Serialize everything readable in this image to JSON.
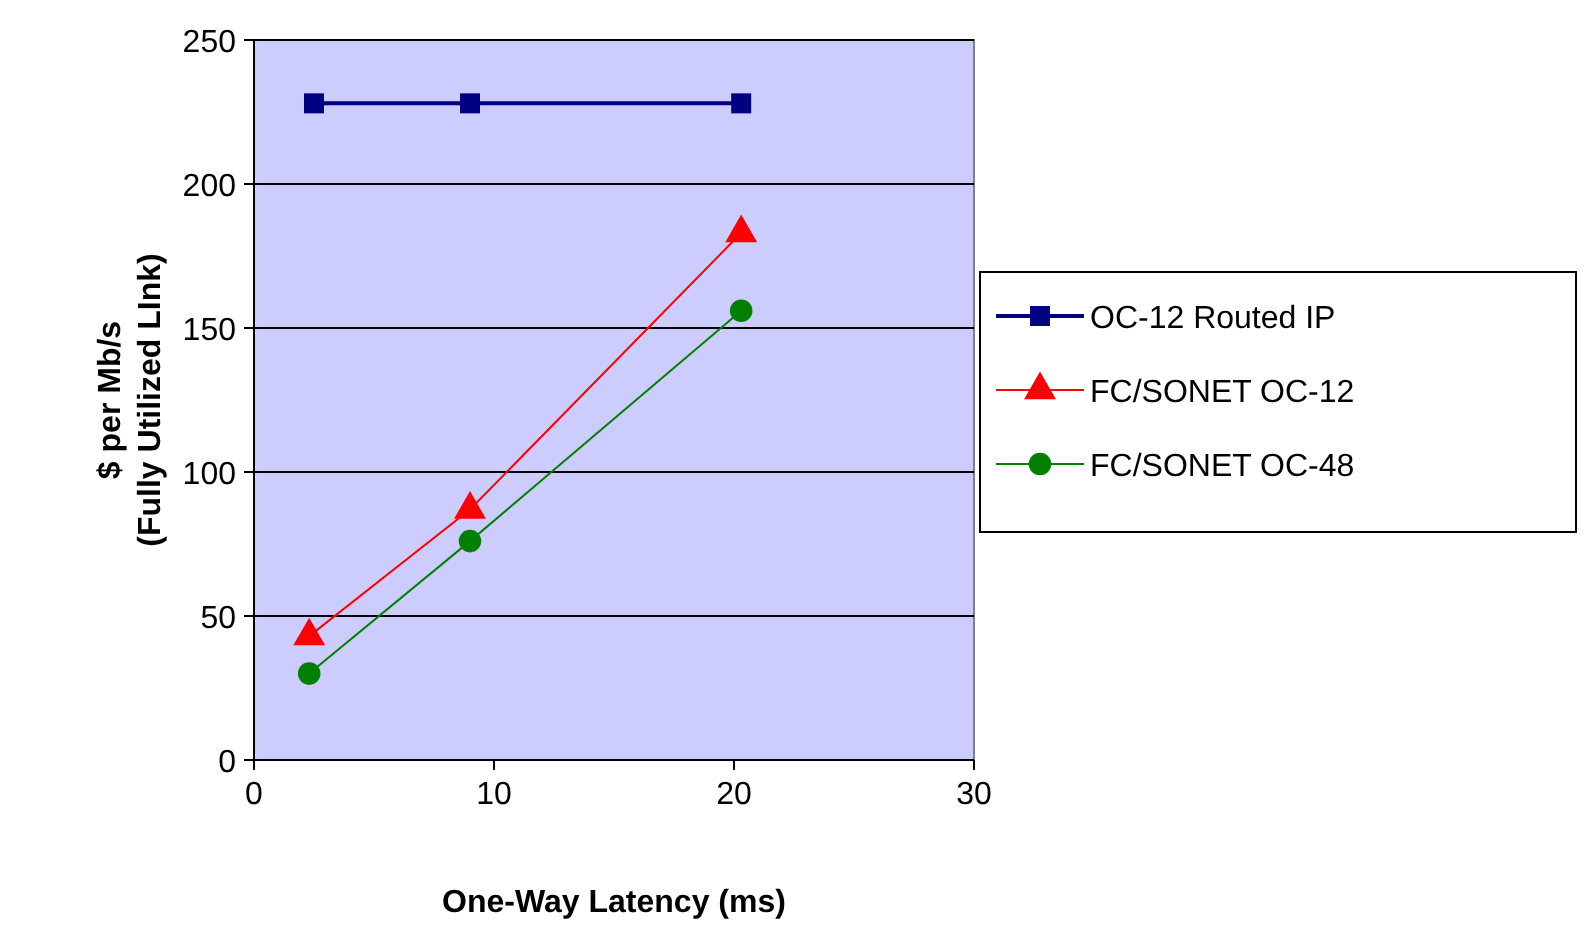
{
  "chart_data": {
    "type": "line",
    "xlabel": "One-Way Latency (ms)",
    "ylabel": "$ per Mb/s\n(Fully Utilized LInk)",
    "xlim": [
      0,
      30
    ],
    "xticks": [
      0,
      10,
      20,
      30
    ],
    "ylim": [
      0,
      250
    ],
    "yticks": [
      0,
      50,
      100,
      150,
      200,
      250
    ],
    "grid": "y",
    "legend": "right",
    "series": [
      {
        "name": "OC-12 Routed IP",
        "color": "#000080",
        "marker": "square",
        "x": [
          2.5,
          9,
          20.3
        ],
        "values": [
          228,
          228,
          228
        ]
      },
      {
        "name": "FC/SONET OC-12",
        "color": "#ff0000",
        "marker": "triangle",
        "x": [
          2.3,
          9,
          20.3
        ],
        "values": [
          43,
          87,
          183
        ]
      },
      {
        "name": "FC/SONET OC-48",
        "color": "#008000",
        "marker": "circle",
        "x": [
          2.3,
          9,
          20.3
        ],
        "values": [
          30,
          76,
          156
        ]
      }
    ]
  }
}
